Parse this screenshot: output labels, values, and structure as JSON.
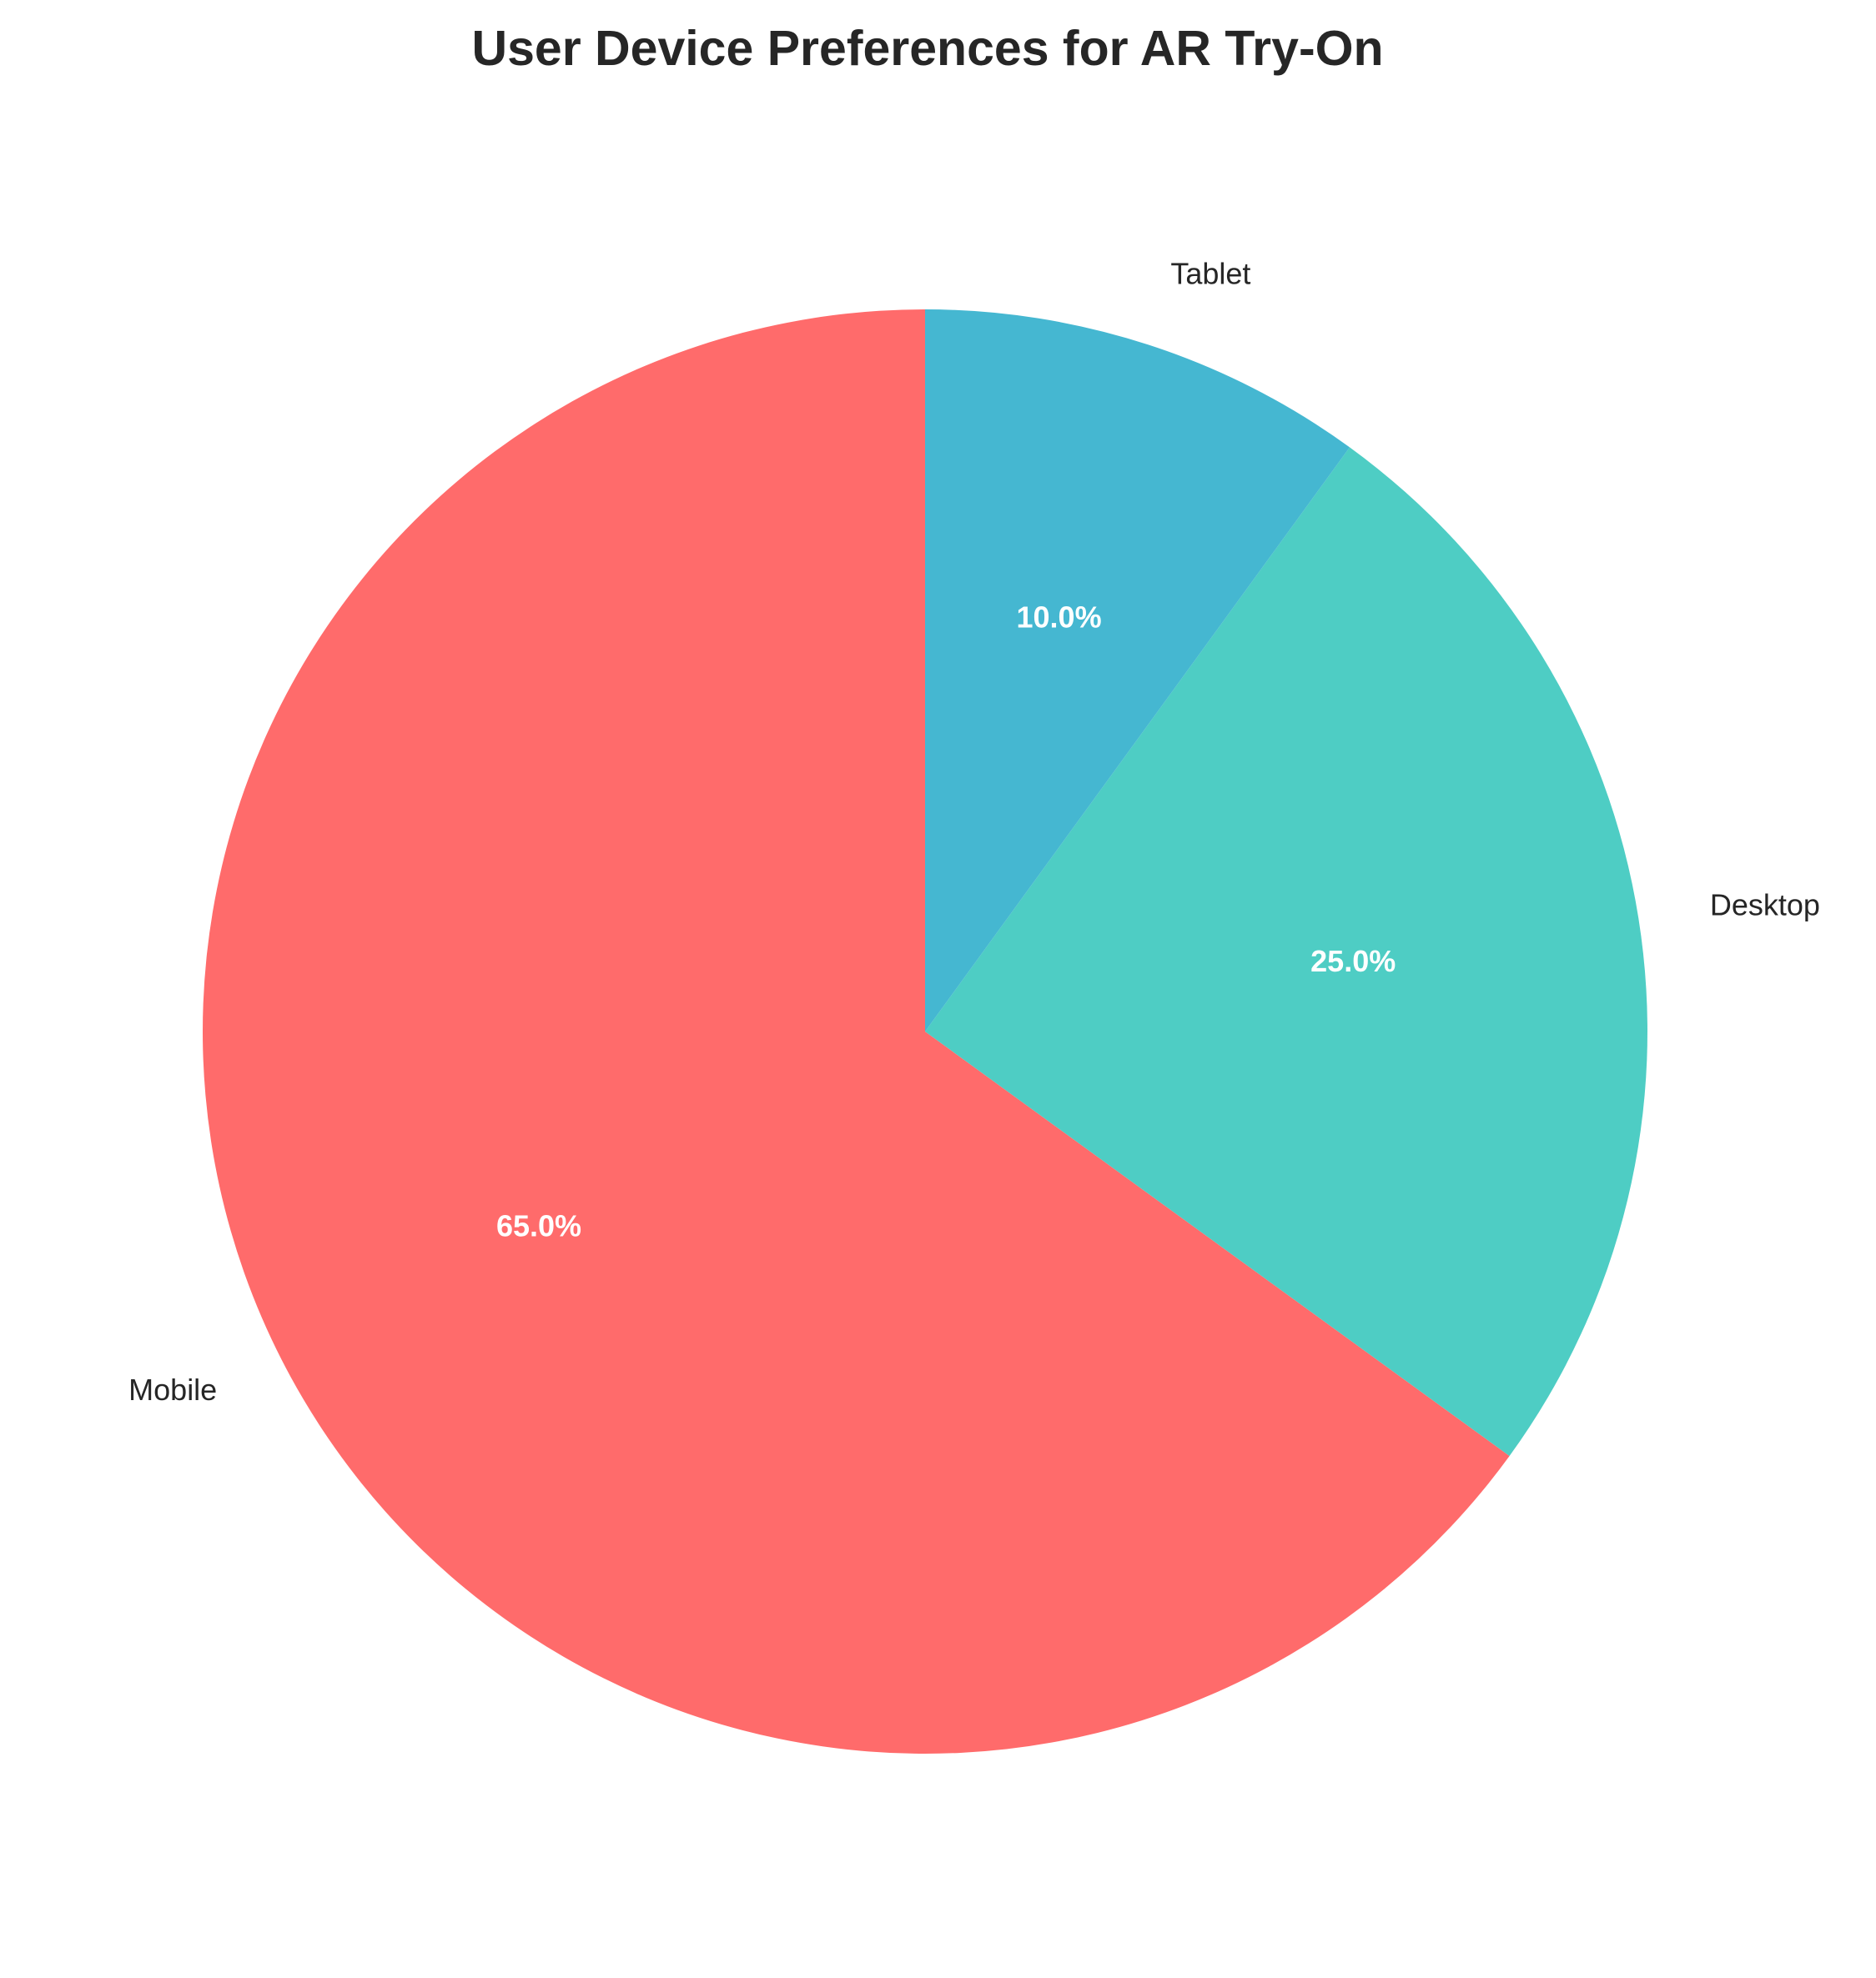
{
  "chart_data": {
    "type": "pie",
    "title": "User Device Preferences for AR Try-On",
    "categories": [
      "Mobile",
      "Desktop",
      "Tablet"
    ],
    "values": [
      65.0,
      25.0,
      10.0
    ],
    "percent_labels": [
      "65.0%",
      "25.0%",
      "10.0%"
    ],
    "colors": [
      "#FF6B6B",
      "#4ECDC4",
      "#45B7D1"
    ],
    "start_angle_deg": 90,
    "direction": "counterclockwise",
    "legend": "none"
  }
}
